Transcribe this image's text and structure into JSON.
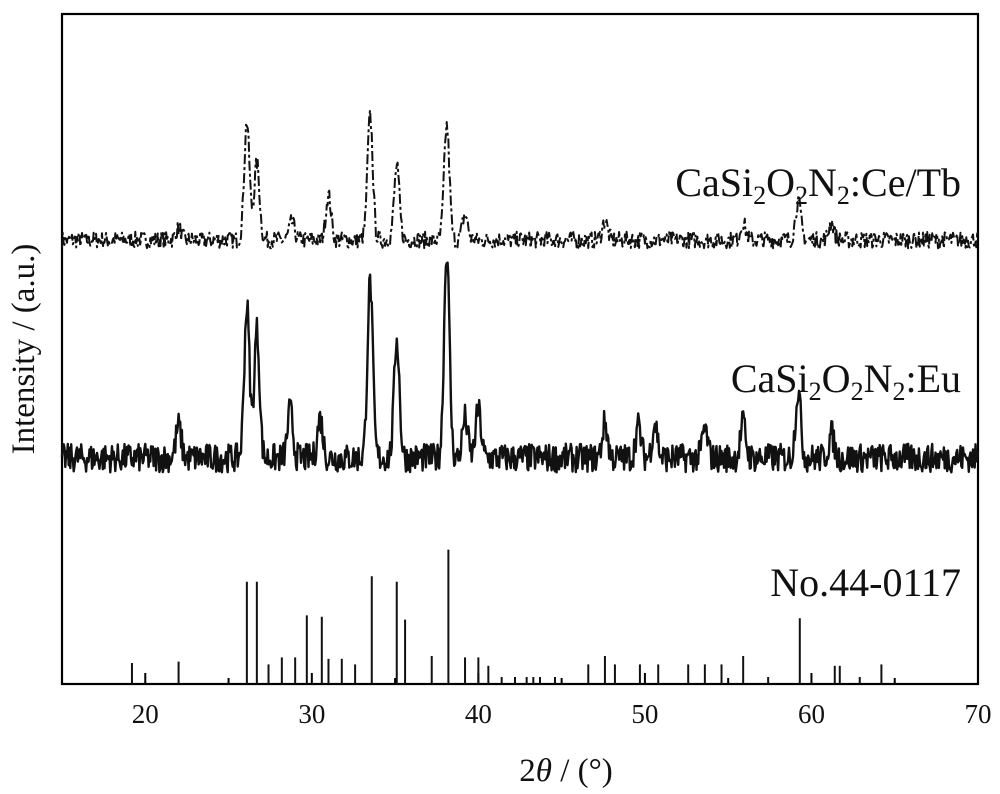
{
  "chart_data": {
    "type": "line",
    "xlabel_prefix": "2",
    "xlabel_symbol": "θ",
    "xlabel_suffix": " / (°)",
    "ylabel": "Intensity / (a.u.)",
    "xlim": [
      15,
      70
    ],
    "xticks": [
      "20",
      "30",
      "40",
      "50",
      "60",
      "70"
    ],
    "grid": false,
    "colors": {
      "line": "#111111",
      "axis": "#000000",
      "background": "#ffffff"
    },
    "series": [
      {
        "id": "ce_tb",
        "label": {
          "base": "CaSi",
          "s1": "2",
          "o": "O",
          "s2": "2",
          "n": "N",
          "s3": "2",
          "dopant": ":Ce/Tb"
        },
        "style": "dash-dot",
        "baseline": 0.12,
        "noise": 0.07,
        "peaks": [
          [
            22.0,
            0.1
          ],
          [
            26.1,
            1.0
          ],
          [
            26.7,
            0.65
          ],
          [
            28.8,
            0.15
          ],
          [
            31.0,
            0.38
          ],
          [
            33.5,
            1.05
          ],
          [
            35.1,
            0.62
          ],
          [
            38.1,
            0.97
          ],
          [
            39.2,
            0.22
          ],
          [
            47.6,
            0.16
          ],
          [
            55.9,
            0.14
          ],
          [
            59.2,
            0.33
          ],
          [
            61.2,
            0.15
          ]
        ]
      },
      {
        "id": "eu",
        "label": {
          "base": "CaSi",
          "s1": "2",
          "o": "O",
          "s2": "2",
          "n": "N",
          "s3": "2",
          "dopant": ":Eu"
        },
        "style": "solid",
        "baseline": 0.1,
        "noise": 0.09,
        "peaks": [
          [
            22.0,
            0.2
          ],
          [
            26.1,
            0.95
          ],
          [
            26.7,
            0.8
          ],
          [
            28.7,
            0.3
          ],
          [
            30.5,
            0.25
          ],
          [
            33.5,
            1.1
          ],
          [
            35.1,
            0.75
          ],
          [
            38.1,
            1.3
          ],
          [
            39.2,
            0.25
          ],
          [
            40.0,
            0.3
          ],
          [
            47.6,
            0.22
          ],
          [
            49.6,
            0.2
          ],
          [
            50.6,
            0.22
          ],
          [
            53.6,
            0.18
          ],
          [
            55.9,
            0.22
          ],
          [
            59.2,
            0.42
          ],
          [
            61.2,
            0.15
          ]
        ]
      }
    ],
    "reference": {
      "label": "No.44-0117",
      "lines": [
        [
          19.2,
          0.15
        ],
        [
          22.0,
          0.16
        ],
        [
          26.1,
          0.73
        ],
        [
          26.7,
          0.73
        ],
        [
          27.4,
          0.14
        ],
        [
          28.2,
          0.19
        ],
        [
          29.0,
          0.19
        ],
        [
          29.7,
          0.49
        ],
        [
          30.6,
          0.48
        ],
        [
          31.0,
          0.18
        ],
        [
          31.8,
          0.18
        ],
        [
          32.6,
          0.14
        ],
        [
          33.6,
          0.77
        ],
        [
          35.1,
          0.73
        ],
        [
          35.6,
          0.46
        ],
        [
          37.2,
          0.2
        ],
        [
          38.2,
          0.96
        ],
        [
          39.2,
          0.19
        ],
        [
          40.0,
          0.19
        ],
        [
          40.6,
          0.13
        ],
        [
          41.4,
          0.05
        ],
        [
          42.2,
          0.05
        ],
        [
          42.9,
          0.05
        ],
        [
          43.3,
          0.05
        ],
        [
          43.7,
          0.05
        ],
        [
          44.6,
          0.05
        ],
        [
          46.6,
          0.14
        ],
        [
          47.6,
          0.2
        ],
        [
          48.2,
          0.14
        ],
        [
          49.7,
          0.14
        ],
        [
          50.8,
          0.14
        ],
        [
          52.6,
          0.14
        ],
        [
          53.6,
          0.14
        ],
        [
          54.6,
          0.14
        ],
        [
          55.9,
          0.2
        ],
        [
          57.4,
          0.05
        ],
        [
          59.3,
          0.47
        ],
        [
          61.4,
          0.13
        ],
        [
          61.7,
          0.13
        ],
        [
          62.9,
          0.05
        ],
        [
          64.2,
          0.14
        ]
      ]
    }
  }
}
